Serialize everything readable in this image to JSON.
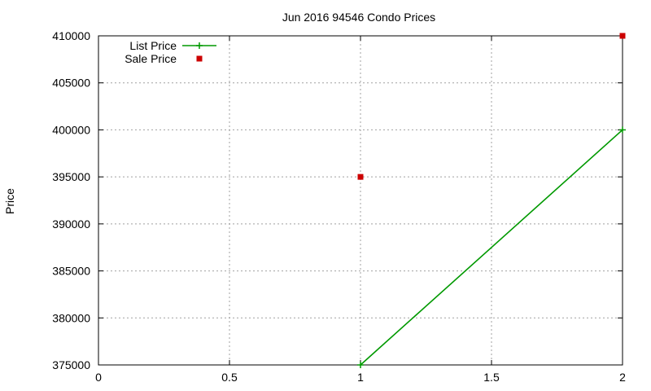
{
  "chart_data": {
    "type": "line",
    "title": "Jun 2016 94546 Condo Prices",
    "xlabel": "",
    "ylabel": "Price",
    "xlim": [
      0,
      2
    ],
    "ylim": [
      375000,
      410000
    ],
    "x_ticks": [
      "0",
      "0.5",
      "1",
      "1.5",
      "2"
    ],
    "y_ticks": [
      "375000",
      "380000",
      "385000",
      "390000",
      "395000",
      "400000",
      "405000",
      "410000"
    ],
    "grid": true,
    "legend_position": "top-left",
    "series": [
      {
        "name": "List Price",
        "style": "line-points",
        "color": "#009900",
        "points": [
          {
            "x": 1,
            "y": 375000
          },
          {
            "x": 2,
            "y": 400000
          }
        ]
      },
      {
        "name": "Sale Price",
        "style": "points",
        "color": "#cc0000",
        "points": [
          {
            "x": 1,
            "y": 395000
          },
          {
            "x": 2,
            "y": 410000
          }
        ]
      }
    ]
  }
}
